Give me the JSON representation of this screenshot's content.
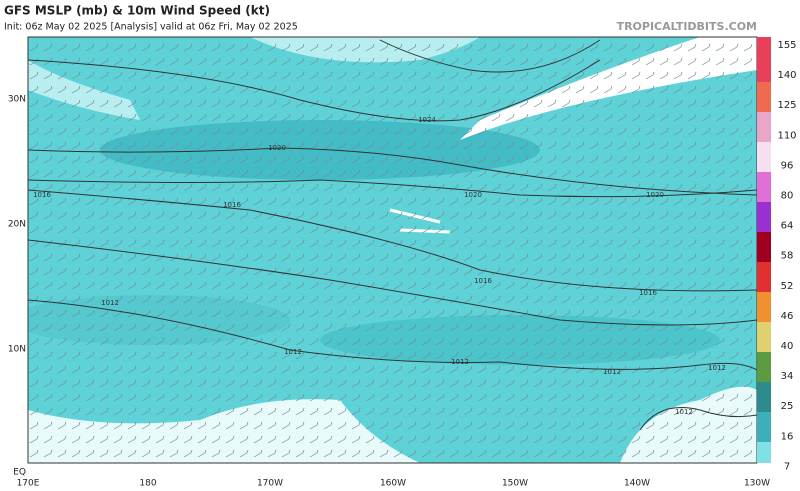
{
  "header": {
    "title": "GFS MSLP (mb) & 10m Wind Speed (kt)",
    "info": "Init: 06z May 02 2025   [Analysis]   valid at 06z Fri, May 02 2025",
    "site": "TROPICALTIDBITS.COM"
  },
  "map": {
    "lat_labels": [
      "30N",
      "20N",
      "10N",
      "EQ"
    ],
    "lon_labels": [
      "170E",
      "180",
      "170W",
      "160W",
      "150W",
      "140W",
      "130W"
    ],
    "isobar_labels": [
      "1024",
      "1020",
      "1016",
      "1016",
      "1020",
      "1020",
      "1016",
      "1016",
      "1012",
      "1012",
      "1012",
      "1012",
      "1012",
      "1012"
    ]
  },
  "colorbar": {
    "labels": [
      "155",
      "140",
      "125",
      "110",
      "96",
      "80",
      "64",
      "58",
      "52",
      "46",
      "40",
      "34",
      "25",
      "16",
      "7"
    ]
  }
}
